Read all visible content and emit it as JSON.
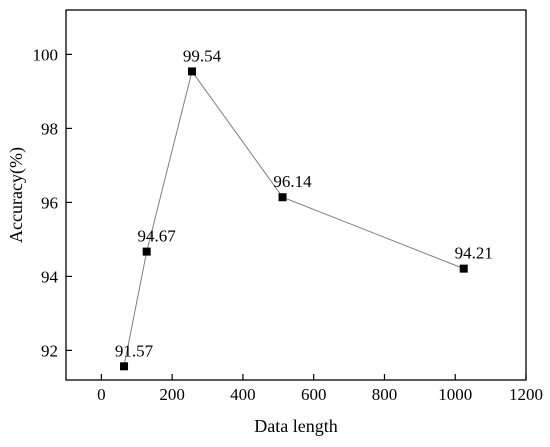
{
  "chart_data": {
    "type": "line",
    "xlabel": "Data length",
    "ylabel": "Accuracy(%)",
    "xlim": [
      -100,
      1200
    ],
    "ylim": [
      91.2,
      101.2
    ],
    "xticks": [
      0,
      200,
      400,
      600,
      800,
      1000,
      1200
    ],
    "yticks": [
      92,
      94,
      96,
      98,
      100
    ],
    "xtick_labels": [
      "0",
      "200",
      "400",
      "600",
      "800",
      "1000",
      "1200"
    ],
    "ytick_labels": [
      "92",
      "94",
      "96",
      "98",
      "100"
    ],
    "grid": false,
    "marker": "square",
    "colors": {
      "line": "#7f7f7f",
      "marker": "#000000",
      "axis": "#000000"
    },
    "series": [
      {
        "x": [
          64,
          128,
          256,
          512,
          1024
        ],
        "values": [
          91.57,
          94.67,
          99.54,
          96.14,
          94.21
        ],
        "labels": [
          "91.57",
          "94.67",
          "99.54",
          "96.14",
          "94.21"
        ]
      }
    ]
  }
}
